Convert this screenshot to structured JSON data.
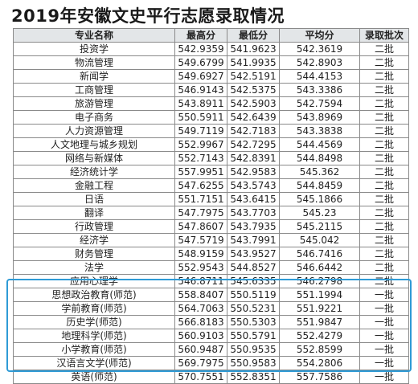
{
  "title": "2019年安徽文史平行志愿录取情况",
  "headers": [
    "专业名称",
    "最高分",
    "最低分",
    "平均分",
    "录取批次"
  ],
  "rows": [
    [
      "投资学",
      "542.9359",
      "541.9623",
      "542.3619",
      "二批"
    ],
    [
      "物流管理",
      "549.6799",
      "541.9935",
      "542.8903",
      "二批"
    ],
    [
      "新闻学",
      "549.6927",
      "542.5191",
      "544.4153",
      "二批"
    ],
    [
      "工商管理",
      "546.9143",
      "542.5375",
      "543.3386",
      "二批"
    ],
    [
      "旅游管理",
      "543.8911",
      "542.5903",
      "542.7594",
      "二批"
    ],
    [
      "电子商务",
      "550.5911",
      "542.6439",
      "543.8969",
      "二批"
    ],
    [
      "人力资源管理",
      "549.7119",
      "542.7183",
      "543.3838",
      "二批"
    ],
    [
      "人文地理与城乡规划",
      "552.9967",
      "542.7295",
      "544.4569",
      "二批"
    ],
    [
      "网络与新媒体",
      "552.7143",
      "542.8391",
      "544.8498",
      "二批"
    ],
    [
      "经济统计学",
      "557.9951",
      "542.9583",
      "545.362",
      "二批"
    ],
    [
      "金融工程",
      "547.6255",
      "543.5743",
      "544.8459",
      "二批"
    ],
    [
      "日语",
      "551.7151",
      "543.6415",
      "545.1866",
      "二批"
    ],
    [
      "翻译",
      "547.7975",
      "543.7703",
      "545.23",
      "二批"
    ],
    [
      "行政管理",
      "547.8607",
      "543.7935",
      "545.2115",
      "二批"
    ],
    [
      "经济学",
      "547.5719",
      "543.7991",
      "545.042",
      "二批"
    ],
    [
      "财务管理",
      "548.9159",
      "543.9527",
      "546.7416",
      "二批"
    ],
    [
      "法学",
      "552.9543",
      "544.8527",
      "546.6442",
      "二批"
    ],
    [
      "应用心理学",
      "546.8711",
      "545.6335",
      "546.2798",
      "二批"
    ],
    [
      "思想政治教育(师范)",
      "558.8407",
      "550.5119",
      "551.1994",
      "一批"
    ],
    [
      "学前教育(师范)",
      "564.7063",
      "550.5231",
      "551.9221",
      "一批"
    ],
    [
      "历史学(师范)",
      "566.8183",
      "550.5303",
      "551.9847",
      "一批"
    ],
    [
      "地理科学(师范)",
      "560.9103",
      "550.5791",
      "552.4279",
      "一批"
    ],
    [
      "小学教育(师范)",
      "560.9487",
      "550.9535",
      "552.8599",
      "一批"
    ],
    [
      "汉语言文学(师范)",
      "569.7975",
      "550.9583",
      "554.2806",
      "一批"
    ],
    [
      "英语(师范)",
      "570.7551",
      "552.8351",
      "557.7586",
      "一批"
    ]
  ],
  "colors": {
    "highlight": "#2f9bd6",
    "header_bg": "#e3e6e8"
  }
}
